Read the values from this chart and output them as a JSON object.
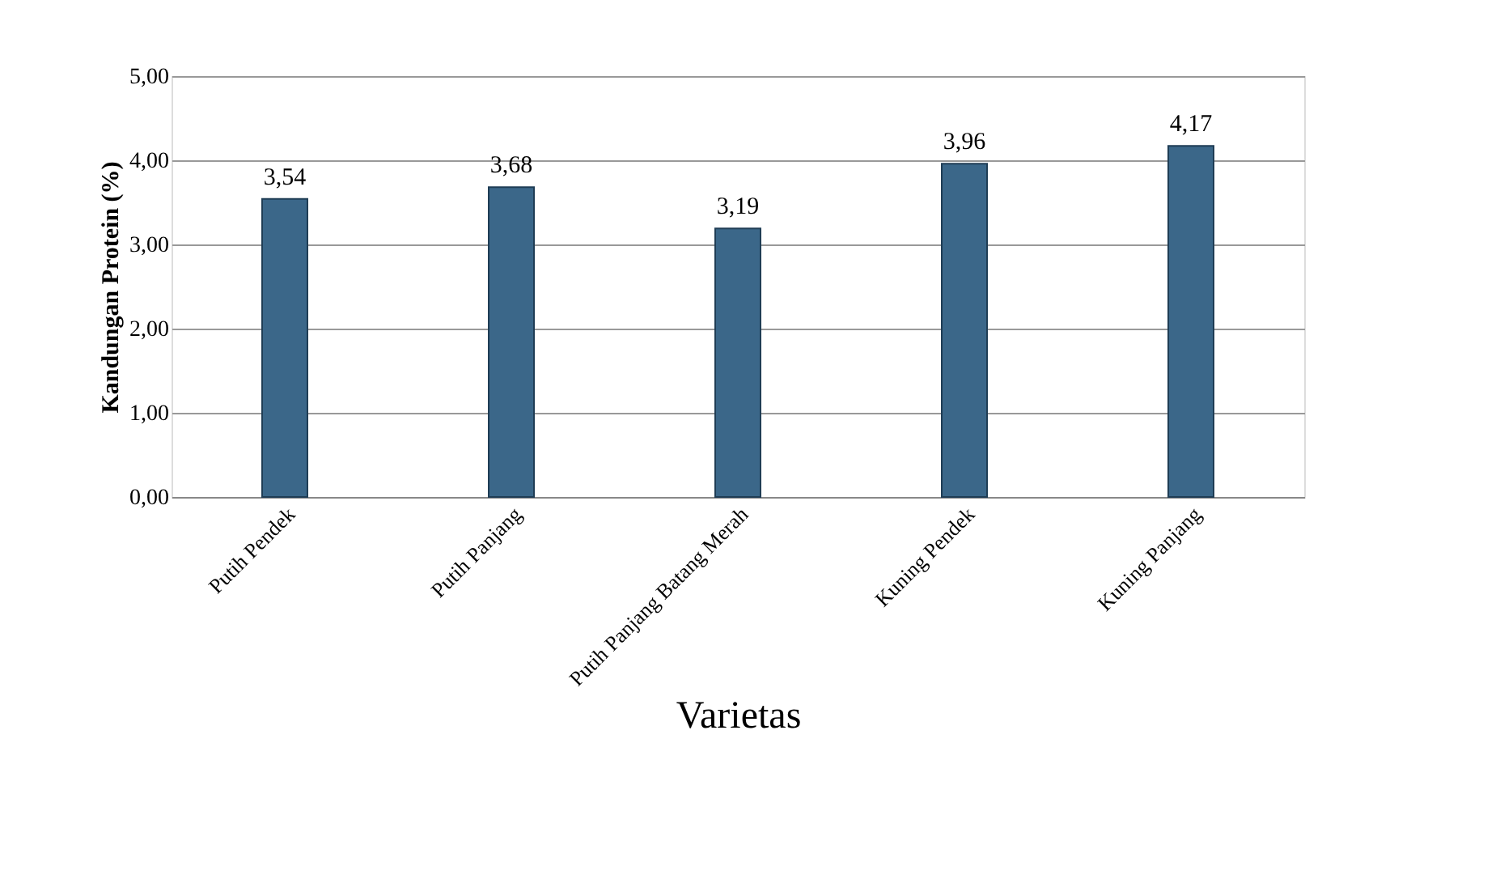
{
  "chart_data": {
    "type": "bar",
    "xlabel": "Varietas",
    "ylabel": "Kandungan Protein (%)",
    "categories": [
      "Putih Pendek",
      "Putih Panjang",
      "Putih Panjang Batang Merah",
      "Kuning Pendek",
      "Kuning Panjang"
    ],
    "values": [
      3.54,
      3.68,
      3.19,
      3.96,
      4.17
    ],
    "value_labels": [
      "3,54",
      "3,68",
      "3,19",
      "3,96",
      "4,17"
    ],
    "color": "#3b6789",
    "ylim": [
      0,
      5
    ],
    "yticks": [
      {
        "value": 0,
        "label": "0,00"
      },
      {
        "value": 1,
        "label": "1,00"
      },
      {
        "value": 2,
        "label": "2,00"
      },
      {
        "value": 3,
        "label": "3,00"
      },
      {
        "value": 4,
        "label": "4,00"
      },
      {
        "value": 5,
        "label": "5,00"
      }
    ],
    "grid": "y"
  }
}
